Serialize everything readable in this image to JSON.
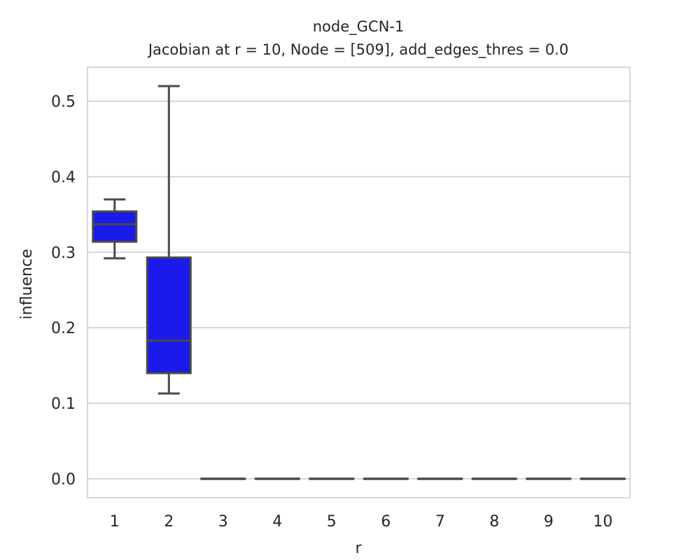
{
  "chart_data": {
    "type": "box",
    "title": "node_GCN-1",
    "subtitle": "Jacobian at r = 10, Node = [509], add_edges_thres = 0.0",
    "xlabel": "r",
    "ylabel": "influence",
    "categories": [
      "1",
      "2",
      "3",
      "4",
      "5",
      "6",
      "7",
      "8",
      "9",
      "10"
    ],
    "yticks": [
      0.0,
      0.1,
      0.2,
      0.3,
      0.4,
      0.5
    ],
    "ytick_labels": [
      "0.0",
      "0.1",
      "0.2",
      "0.3",
      "0.4",
      "0.5"
    ],
    "ylim": [
      -0.025,
      0.545
    ],
    "grid": true,
    "box_color": "#1a1aeb",
    "line_color": "#4a4a4a",
    "grid_color": "#cccccc",
    "boxes": [
      {
        "category": "1",
        "whisker_low": 0.292,
        "q1": 0.314,
        "median": 0.337,
        "q3": 0.354,
        "whisker_high": 0.37
      },
      {
        "category": "2",
        "whisker_low": 0.113,
        "q1": 0.14,
        "median": 0.183,
        "q3": 0.293,
        "whisker_high": 0.52
      },
      {
        "category": "3",
        "whisker_low": 0.0,
        "q1": 0.0,
        "median": 0.0,
        "q3": 0.0,
        "whisker_high": 0.0
      },
      {
        "category": "4",
        "whisker_low": 0.0,
        "q1": 0.0,
        "median": 0.0,
        "q3": 0.0,
        "whisker_high": 0.0
      },
      {
        "category": "5",
        "whisker_low": 0.0,
        "q1": 0.0,
        "median": 0.0,
        "q3": 0.0,
        "whisker_high": 0.0
      },
      {
        "category": "6",
        "whisker_low": 0.0,
        "q1": 0.0,
        "median": 0.0,
        "q3": 0.0,
        "whisker_high": 0.0
      },
      {
        "category": "7",
        "whisker_low": 0.0,
        "q1": 0.0,
        "median": 0.0,
        "q3": 0.0,
        "whisker_high": 0.0
      },
      {
        "category": "8",
        "whisker_low": 0.0,
        "q1": 0.0,
        "median": 0.0,
        "q3": 0.0,
        "whisker_high": 0.0
      },
      {
        "category": "9",
        "whisker_low": 0.0,
        "q1": 0.0,
        "median": 0.0,
        "q3": 0.0,
        "whisker_high": 0.0
      },
      {
        "category": "10",
        "whisker_low": 0.0,
        "q1": 0.0,
        "median": 0.0,
        "q3": 0.0,
        "whisker_high": 0.0
      }
    ]
  }
}
